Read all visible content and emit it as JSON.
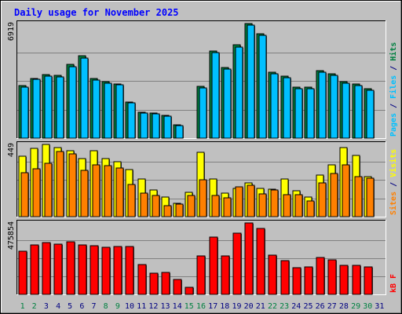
{
  "title": "Daily usage for November 2025",
  "colors": {
    "background": "#c0c0c0",
    "title": "#0000ff",
    "hits": "#008040",
    "files": "#00c0ff",
    "sites": "#ff8000",
    "visits": "#ffff00",
    "kbytes": "#ff0000",
    "weekend": "#008040",
    "weekday": "#000080"
  },
  "chart_data": [
    {
      "type": "bar",
      "panel": "hits_files",
      "ymax_label": "6919",
      "ylim": [
        0,
        6919
      ],
      "right_label": {
        "parts": [
          {
            "text": "Pages",
            "color": "#00c0ff"
          },
          {
            "text": " / ",
            "color": "#000080"
          },
          {
            "text": "Files",
            "color": "#00c0ff"
          },
          {
            "text": " / ",
            "color": "#000080"
          },
          {
            "text": "Hits",
            "color": "#008040"
          }
        ]
      },
      "categories": [
        "1",
        "2",
        "3",
        "4",
        "5",
        "6",
        "7",
        "8",
        "9",
        "10",
        "11",
        "12",
        "13",
        "14",
        "15",
        "16",
        "17",
        "18",
        "19",
        "20",
        "21",
        "22",
        "23",
        "24",
        "25",
        "26",
        "27",
        "28",
        "29",
        "30",
        "31"
      ],
      "series": [
        {
          "name": "Hits",
          "color": "#008040",
          "values": [
            3140,
            3600,
            3820,
            3770,
            4440,
            4950,
            3590,
            3390,
            3270,
            2160,
            1540,
            1520,
            1370,
            780,
            0,
            3090,
            5210,
            4230,
            5580,
            6850,
            6240,
            3940,
            3720,
            3060,
            3060,
            4040,
            3880,
            3380,
            3240,
            2960,
            0
          ]
        },
        {
          "name": "Files",
          "color": "#00c0ff",
          "values": [
            3050,
            3520,
            3740,
            3690,
            4280,
            4790,
            3500,
            3310,
            3190,
            2100,
            1500,
            1480,
            1330,
            750,
            0,
            3010,
            5110,
            4140,
            5460,
            6770,
            6150,
            3840,
            3630,
            2980,
            2980,
            3950,
            3780,
            3300,
            3160,
            2870,
            0
          ]
        }
      ]
    },
    {
      "type": "bar",
      "panel": "visits_sites",
      "ymax_label": "449",
      "ylim": [
        0,
        449
      ],
      "right_label": {
        "parts": [
          {
            "text": "Sites",
            "color": "#ff8000"
          },
          {
            "text": " / ",
            "color": "#000080"
          },
          {
            "text": "Visits",
            "color": "#ffff00"
          }
        ]
      },
      "categories": [
        "1",
        "2",
        "3",
        "4",
        "5",
        "6",
        "7",
        "8",
        "9",
        "10",
        "11",
        "12",
        "13",
        "14",
        "15",
        "16",
        "17",
        "18",
        "19",
        "20",
        "21",
        "22",
        "23",
        "24",
        "25",
        "26",
        "27",
        "28",
        "29",
        "30",
        "31"
      ],
      "series": [
        {
          "name": "Visits",
          "color": "#ffff00",
          "values": [
            370,
            420,
            445,
            425,
            405,
            355,
            405,
            355,
            340,
            290,
            230,
            165,
            120,
            80,
            150,
            395,
            230,
            145,
            175,
            210,
            175,
            170,
            230,
            160,
            120,
            255,
            320,
            425,
            375,
            245,
            0
          ]
        },
        {
          "name": "Sites",
          "color": "#ff8000",
          "values": [
            270,
            295,
            330,
            400,
            385,
            285,
            320,
            315,
            300,
            200,
            145,
            130,
            70,
            75,
            130,
            225,
            130,
            115,
            185,
            195,
            140,
            165,
            135,
            135,
            95,
            210,
            265,
            320,
            245,
            235,
            0
          ]
        }
      ]
    },
    {
      "type": "bar",
      "panel": "kbytes",
      "ymax_label": "475854",
      "ylim": [
        0,
        475854
      ],
      "right_label": {
        "parts": [
          {
            "text": "kB F",
            "color": "#ff0000"
          }
        ]
      },
      "categories": [
        "1",
        "2",
        "3",
        "4",
        "5",
        "6",
        "7",
        "8",
        "9",
        "10",
        "11",
        "12",
        "13",
        "14",
        "15",
        "16",
        "17",
        "18",
        "19",
        "20",
        "21",
        "22",
        "23",
        "24",
        "25",
        "26",
        "27",
        "28",
        "29",
        "30",
        "31"
      ],
      "series": [
        {
          "name": "kB F",
          "color": "#ff0000",
          "values": [
            282000,
            324000,
            341000,
            333000,
            345000,
            324000,
            322000,
            312000,
            314000,
            316000,
            198000,
            140000,
            143000,
            97000,
            44000,
            252000,
            378000,
            255000,
            404000,
            473000,
            433000,
            259000,
            223000,
            177000,
            179000,
            245000,
            229000,
            190000,
            191000,
            179000,
            0
          ]
        }
      ]
    }
  ],
  "x_axis": {
    "labels": [
      "1",
      "2",
      "3",
      "4",
      "5",
      "6",
      "7",
      "8",
      "9",
      "10",
      "11",
      "12",
      "13",
      "14",
      "15",
      "16",
      "17",
      "18",
      "19",
      "20",
      "21",
      "22",
      "23",
      "24",
      "25",
      "26",
      "27",
      "28",
      "29",
      "30",
      "31"
    ],
    "weekend_labels": [
      "1",
      "2",
      "8",
      "9",
      "15",
      "16",
      "22",
      "23",
      "29",
      "30"
    ]
  }
}
